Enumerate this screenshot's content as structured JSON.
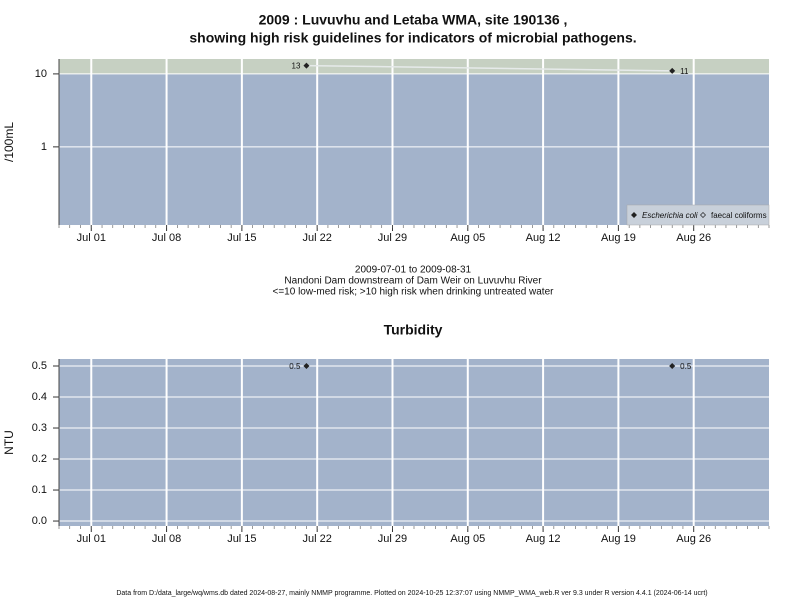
{
  "chart_data": [
    {
      "type": "scatter",
      "title": "2009 : Luvuvhu and Letaba WMA, site 190136 ,",
      "subtitle": "showing high risk guidelines for indicators of microbial pathogens.",
      "ylabel": "/100mL",
      "log_y": true,
      "ylim": [
        0.085,
        16
      ],
      "yticks": [
        1,
        10
      ],
      "threshold": 10,
      "xlim": [
        "2009-06-28",
        "2009-09-02"
      ],
      "xticks": [
        {
          "value": "2009-07-01",
          "label": "Jul 01"
        },
        {
          "value": "2009-07-08",
          "label": "Jul 08"
        },
        {
          "value": "2009-07-15",
          "label": "Jul 15"
        },
        {
          "value": "2009-07-22",
          "label": "Jul 22"
        },
        {
          "value": "2009-07-29",
          "label": "Jul 29"
        },
        {
          "value": "2009-08-05",
          "label": "Aug 05"
        },
        {
          "value": "2009-08-12",
          "label": "Aug 12"
        },
        {
          "value": "2009-08-19",
          "label": "Aug 19"
        },
        {
          "value": "2009-08-26",
          "label": "Aug 26"
        }
      ],
      "x": [
        "2009-07-21",
        "2009-08-24"
      ],
      "series": [
        {
          "name": "Escherichia coli",
          "color": "#222222",
          "values": [
            13,
            11
          ]
        },
        {
          "name": "faecal coliforms",
          "color": "#222222",
          "values": [
            null,
            null
          ]
        }
      ],
      "legend": "lower right",
      "grid": true,
      "notes": [
        "2009-07-01 to 2009-08-31",
        "Nandoni Dam downstream of Dam Weir on Luvuvhu River",
        "<=10 low-med risk; >10 high risk when drinking untreated water"
      ]
    },
    {
      "type": "scatter",
      "title": "Turbidity",
      "ylabel": "NTU",
      "log_y": false,
      "ylim": [
        -0.016,
        0.5226
      ],
      "yticks": [
        {
          "value": 0,
          "label": "0.0"
        },
        0.1,
        0.2,
        0.3,
        0.4,
        0.5
      ],
      "xlim": [
        "2009-06-28",
        "2009-09-02"
      ],
      "xticks": [
        {
          "value": "2009-07-01",
          "label": "Jul 01"
        },
        {
          "value": "2009-07-08",
          "label": "Jul 08"
        },
        {
          "value": "2009-07-15",
          "label": "Jul 15"
        },
        {
          "value": "2009-07-22",
          "label": "Jul 22"
        },
        {
          "value": "2009-07-29",
          "label": "Jul 29"
        },
        {
          "value": "2009-08-05",
          "label": "Aug 05"
        },
        {
          "value": "2009-08-12",
          "label": "Aug 12"
        },
        {
          "value": "2009-08-19",
          "label": "Aug 19"
        },
        {
          "value": "2009-08-26",
          "label": "Aug 26"
        }
      ],
      "x": [
        "2009-07-21",
        "2009-08-24"
      ],
      "series": [
        {
          "name": "Turbidity",
          "color": "#222222",
          "values": [
            0.5,
            0.5
          ]
        }
      ],
      "grid": true
    }
  ],
  "footer": "Data from D:/data_large/wq/wms.db dated 2024-08-27, mainly NMMP programme. Plotted on 2024-10-25 12:37:07 using NMMP_WMA_web.R ver 9.3 under R version 4.4.1 (2024-06-14 ucrt)"
}
